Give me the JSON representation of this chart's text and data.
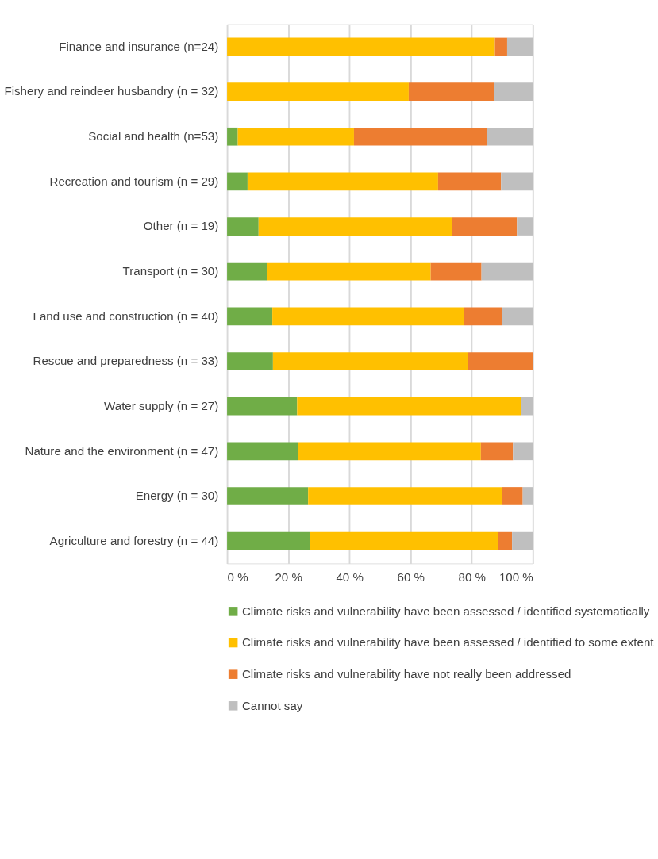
{
  "chart_data": {
    "type": "bar",
    "orientation": "horizontal",
    "stacked": true,
    "categories": [
      "Finance and insurance (n=24)",
      "Fishery and reindeer husbandry (n = 32)",
      "Social and health (n=53)",
      "Recreation and tourism (n = 29)",
      "Other (n = 19)",
      "Transport (n = 30)",
      "Land use and construction (n = 40)",
      "Rescue and preparedness (n = 33)",
      "Water supply (n = 27)",
      "Nature and the environment (n = 47)",
      "Energy (n = 30)",
      "Agriculture and forestry (n = 44)"
    ],
    "series": [
      {
        "name": "Climate risks and vulnerability have been assessed / identified systematically",
        "color": "#70ad47",
        "values": [
          0,
          0,
          3.5,
          6.7,
          10.3,
          13.1,
          14.8,
          15.0,
          22.9,
          23.3,
          26.5,
          27.1
        ]
      },
      {
        "name": "Climate risks and vulnerability have been assessed / identified to some extent",
        "color": "#ffc000",
        "values": [
          87.6,
          59.4,
          38.0,
          62.3,
          63.4,
          53.5,
          62.7,
          63.8,
          73.2,
          59.7,
          63.5,
          61.6
        ]
      },
      {
        "name": "Climate risks and vulnerability have not really been addressed",
        "color": "#ed7d31",
        "values": [
          4.0,
          28.0,
          43.5,
          20.6,
          21.1,
          16.6,
          12.4,
          21.2,
          0,
          10.5,
          6.7,
          4.5
        ]
      },
      {
        "name": "Cannot say",
        "color": "#bfbfbf",
        "values": [
          8.4,
          12.6,
          15.0,
          10.4,
          5.2,
          16.8,
          10.1,
          0,
          3.9,
          6.5,
          3.3,
          6.8
        ]
      }
    ],
    "xlim": [
      0,
      100
    ],
    "xticks": [
      {
        "value": 0,
        "label": "0 %"
      },
      {
        "value": 20,
        "label": "20 %"
      },
      {
        "value": 40,
        "label": "40 %"
      },
      {
        "value": 60,
        "label": "60 %"
      },
      {
        "value": 80,
        "label": "80 %"
      },
      {
        "value": 100,
        "label": "100 %"
      }
    ],
    "grid": "x",
    "legend": "bottom"
  }
}
